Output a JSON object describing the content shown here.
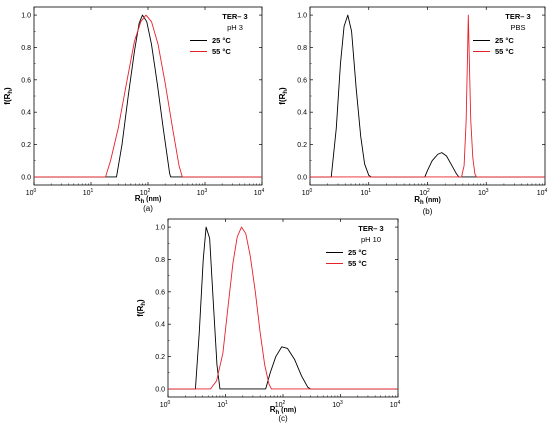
{
  "chart_data": [
    {
      "type": "line",
      "caption": "(a)",
      "xlabel": "R",
      "xlabel_sub": "h",
      "xlabel_unit": "(nm)",
      "ylabel": "f(R",
      "ylabel_sub": "h",
      "ylabel_end": ")",
      "xscale": "log",
      "xlim": [
        1,
        10000
      ],
      "ylim": [
        -0.05,
        1.05
      ],
      "x_ticks": [
        "0",
        "1",
        "2",
        "3",
        "4"
      ],
      "x_tick_base": "10",
      "y_ticks": [
        "0.0",
        "0.2",
        "0.4",
        "0.6",
        "0.8",
        "1.0"
      ],
      "annotation": {
        "title": "TER– 3",
        "subtitle": "pH 3"
      },
      "legend_position": "top-right",
      "series": [
        {
          "name": "25 °C",
          "color": "#000000",
          "points": [
            [
              1,
              0
            ],
            [
              28,
              0
            ],
            [
              35,
              0.2
            ],
            [
              45,
              0.5
            ],
            [
              58,
              0.78
            ],
            [
              70,
              0.95
            ],
            [
              80,
              1.0
            ],
            [
              95,
              0.96
            ],
            [
              115,
              0.82
            ],
            [
              145,
              0.58
            ],
            [
              185,
              0.3
            ],
            [
              240,
              0.02
            ],
            [
              250,
              0
            ],
            [
              10000,
              0
            ]
          ]
        },
        {
          "name": "55 °C",
          "color": "#e8202a",
          "points": [
            [
              1,
              0
            ],
            [
              18,
              0
            ],
            [
              22,
              0.1
            ],
            [
              30,
              0.3
            ],
            [
              42,
              0.58
            ],
            [
              58,
              0.84
            ],
            [
              75,
              0.96
            ],
            [
              92,
              1.0
            ],
            [
              115,
              0.96
            ],
            [
              150,
              0.82
            ],
            [
              200,
              0.58
            ],
            [
              270,
              0.3
            ],
            [
              350,
              0.07
            ],
            [
              400,
              0
            ],
            [
              10000,
              0
            ]
          ]
        }
      ]
    },
    {
      "type": "line",
      "caption": "(b)",
      "xlabel": "R",
      "xlabel_sub": "h",
      "xlabel_unit": "(nm)",
      "ylabel": "f(R",
      "ylabel_sub": "h",
      "ylabel_end": ")",
      "xscale": "log",
      "xlim": [
        1,
        10000
      ],
      "ylim": [
        -0.05,
        1.05
      ],
      "x_ticks": [
        "0",
        "1",
        "2",
        "3",
        "4"
      ],
      "x_tick_base": "10",
      "y_ticks": [
        "0.0",
        "0.2",
        "0.4",
        "0.6",
        "0.8",
        "1.0"
      ],
      "annotation": {
        "title": "TER– 3",
        "subtitle": "PBS"
      },
      "legend_position": "top-right",
      "series": [
        {
          "name": "25 °C",
          "color": "#000000",
          "points": [
            [
              1,
              0
            ],
            [
              2.3,
              0
            ],
            [
              2.8,
              0.3
            ],
            [
              3.3,
              0.7
            ],
            [
              3.8,
              0.93
            ],
            [
              4.4,
              1.0
            ],
            [
              5.1,
              0.9
            ],
            [
              6.1,
              0.55
            ],
            [
              7.3,
              0.25
            ],
            [
              8.5,
              0.08
            ],
            [
              10,
              0.01
            ],
            [
              11,
              0
            ],
            [
              90,
              0
            ],
            [
              100,
              0.04
            ],
            [
              120,
              0.1
            ],
            [
              150,
              0.14
            ],
            [
              175,
              0.15
            ],
            [
              210,
              0.13
            ],
            [
              260,
              0.07
            ],
            [
              310,
              0.02
            ],
            [
              340,
              0
            ],
            [
              10000,
              0
            ]
          ]
        },
        {
          "name": "55 °C",
          "color": "#e8202a",
          "points": [
            [
              1,
              0
            ],
            [
              380,
              0
            ],
            [
              420,
              0.07
            ],
            [
              455,
              0.35
            ],
            [
              478,
              0.72
            ],
            [
              495,
              1.0
            ],
            [
              515,
              0.72
            ],
            [
              545,
              0.35
            ],
            [
              590,
              0.12
            ],
            [
              640,
              0.02
            ],
            [
              680,
              0
            ],
            [
              10000,
              0
            ]
          ]
        }
      ]
    },
    {
      "type": "line",
      "caption": "(c)",
      "xlabel": "R",
      "xlabel_sub": "h",
      "xlabel_unit": "(nm)",
      "ylabel": "f(R",
      "ylabel_sub": "h",
      "ylabel_end": ")",
      "xscale": "log",
      "xlim": [
        1,
        10000
      ],
      "ylim": [
        -0.05,
        1.05
      ],
      "x_ticks": [
        "0",
        "1",
        "2",
        "3",
        "4"
      ],
      "x_tick_base": "10",
      "y_ticks": [
        "0.0",
        "0.2",
        "0.4",
        "0.6",
        "0.8",
        "1.0"
      ],
      "annotation": {
        "title": "TER– 3",
        "subtitle": "pH 10"
      },
      "legend_position": "top-right",
      "series": [
        {
          "name": "25 °C",
          "color": "#000000",
          "points": [
            [
              1,
              0
            ],
            [
              3,
              0
            ],
            [
              3.5,
              0.35
            ],
            [
              4.1,
              0.8
            ],
            [
              4.6,
              1.0
            ],
            [
              5.3,
              0.93
            ],
            [
              6.1,
              0.55
            ],
            [
              7.1,
              0.15
            ],
            [
              8,
              0
            ],
            [
              50,
              0
            ],
            [
              60,
              0.1
            ],
            [
              75,
              0.2
            ],
            [
              95,
              0.26
            ],
            [
              120,
              0.25
            ],
            [
              160,
              0.18
            ],
            [
              210,
              0.08
            ],
            [
              270,
              0.01
            ],
            [
              300,
              0
            ],
            [
              10000,
              0
            ]
          ]
        },
        {
          "name": "55 °C",
          "color": "#e8202a",
          "points": [
            [
              1,
              0
            ],
            [
              5.5,
              0
            ],
            [
              7,
              0.05
            ],
            [
              9,
              0.22
            ],
            [
              11,
              0.5
            ],
            [
              13.5,
              0.78
            ],
            [
              16,
              0.94
            ],
            [
              19,
              1.0
            ],
            [
              22.5,
              0.96
            ],
            [
              27,
              0.82
            ],
            [
              33,
              0.6
            ],
            [
              40,
              0.35
            ],
            [
              48,
              0.15
            ],
            [
              57,
              0.03
            ],
            [
              63,
              0
            ],
            [
              10000,
              0
            ]
          ]
        }
      ]
    }
  ]
}
